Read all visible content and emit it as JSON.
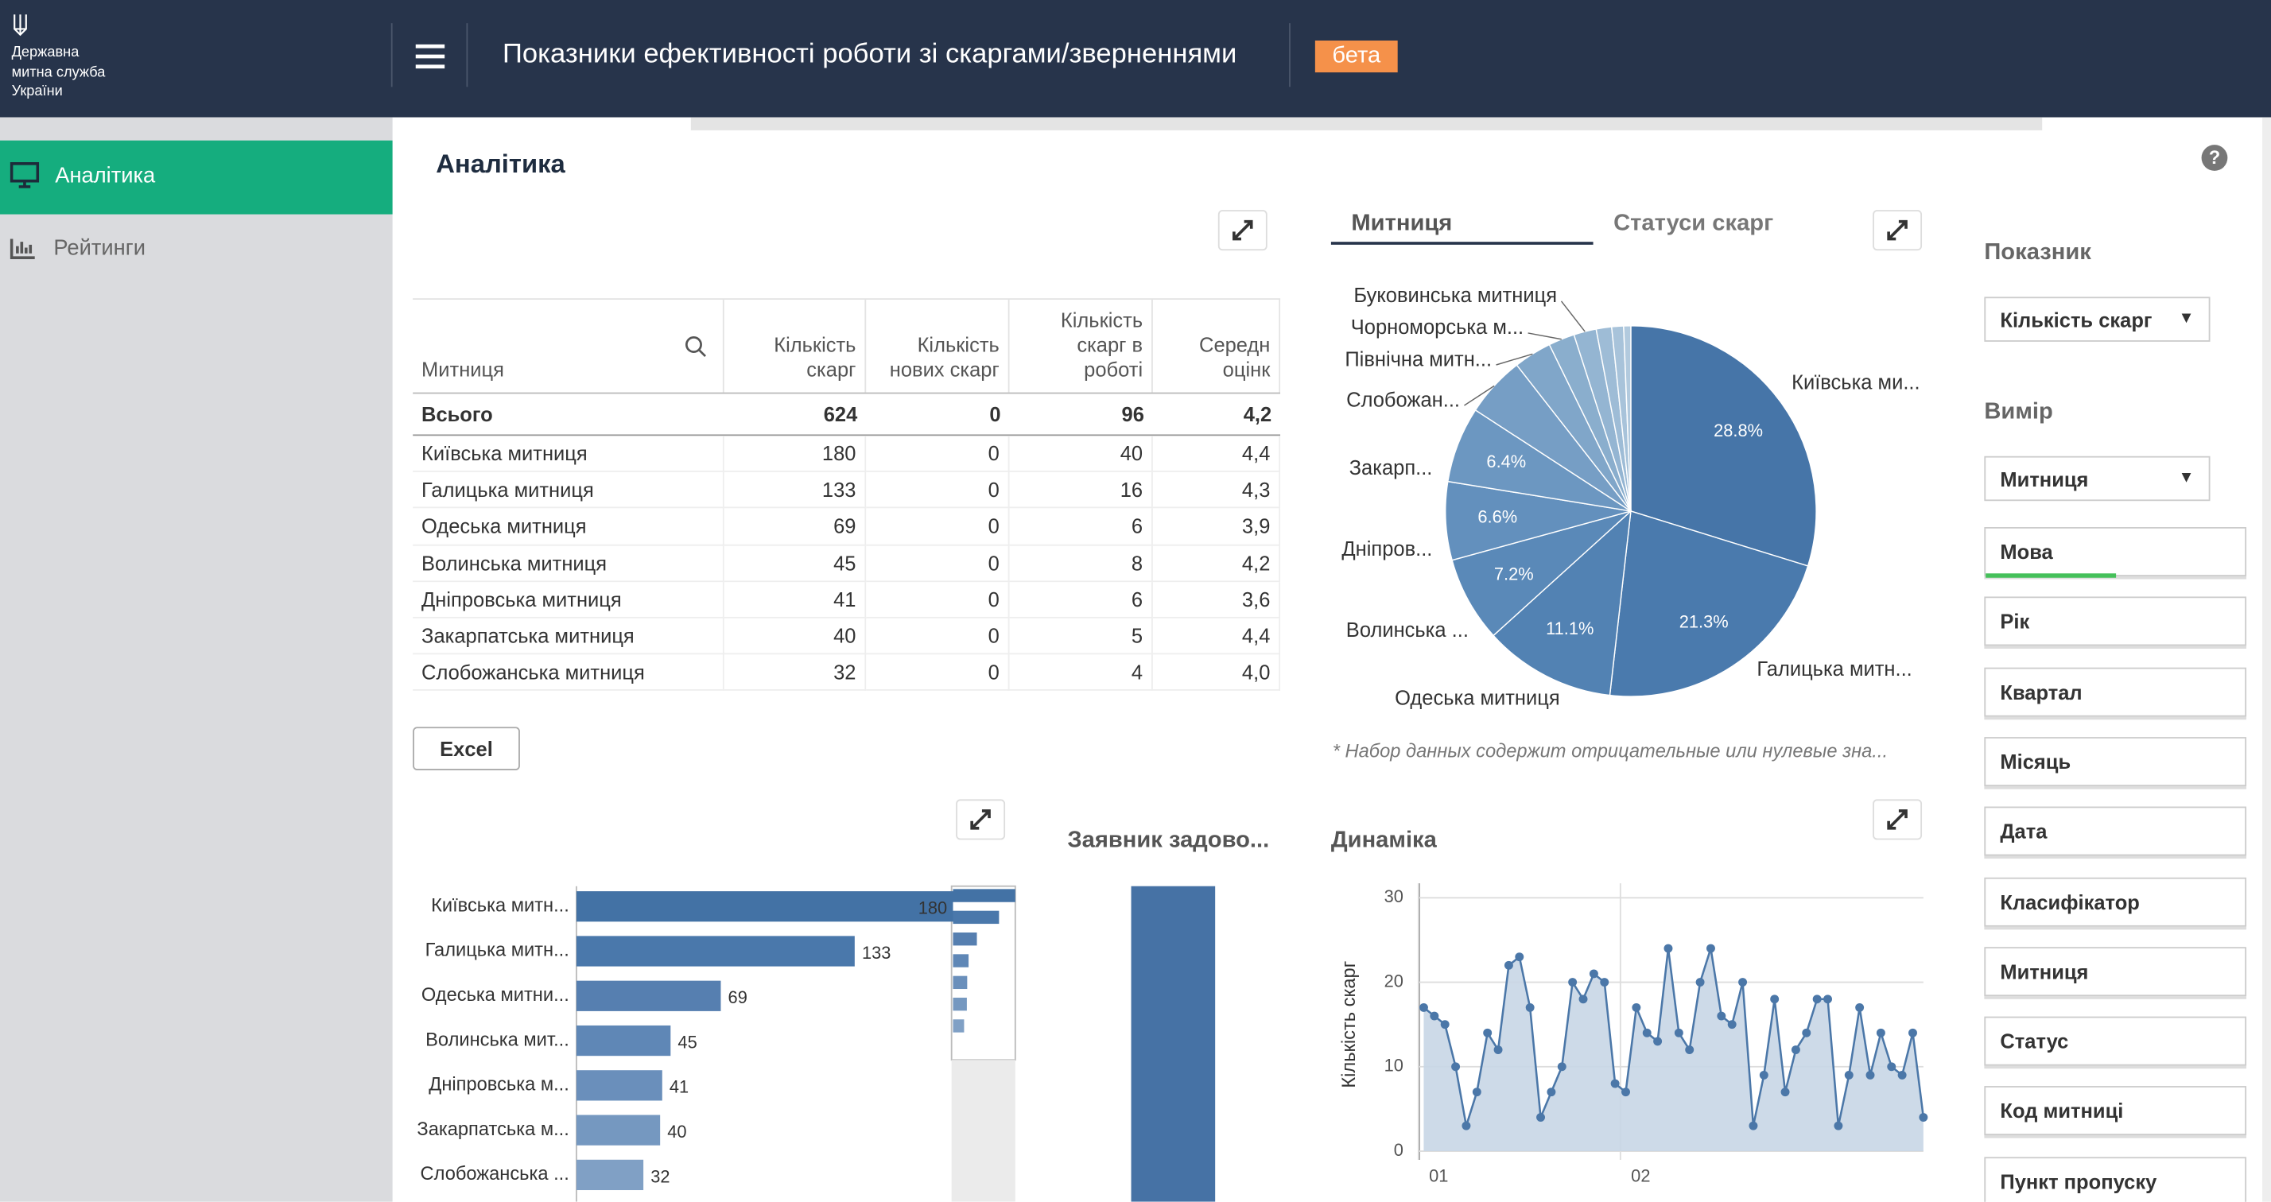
{
  "header": {
    "logo_lines": [
      "Державна",
      "митна служба",
      "України"
    ],
    "title": "Показники ефективності роботи зі скаргами/зверненнями",
    "badge": "бета"
  },
  "sidebar": {
    "items": [
      "Аналітика",
      "Рейтинги"
    ]
  },
  "section_title": "Аналітика",
  "help": "?",
  "table": {
    "columns": [
      "Митниця",
      "Кількість скарг",
      "Кількість нових скарг",
      "Кількість скарг в роботі",
      "Середн оцінк"
    ],
    "total": [
      "Всього",
      624,
      0,
      96,
      "4,2"
    ],
    "rows": [
      [
        "Київська митниця",
        180,
        0,
        40,
        "4,4"
      ],
      [
        "Галицька митниця",
        133,
        0,
        16,
        "4,3"
      ],
      [
        "Одеська митниця",
        69,
        0,
        6,
        "3,9"
      ],
      [
        "Волинська митниця",
        45,
        0,
        8,
        "4,2"
      ],
      [
        "Дніпровська митниця",
        41,
        0,
        6,
        "3,6"
      ],
      [
        "Закарпатська митниця",
        40,
        0,
        5,
        "4,4"
      ],
      [
        "Слобожанська митниця",
        32,
        0,
        4,
        "4,0"
      ]
    ],
    "export": "Excel"
  },
  "satisfaction_title": "Заявник задово...",
  "chart_data": [
    {
      "type": "pie",
      "tabs": [
        "Митниця",
        "Статуси скарг"
      ],
      "categories": [
        "Київська ми...",
        "Галицька митн...",
        "Одеська митниця",
        "Волинська ...",
        "Дніпров...",
        "Закарп...",
        "Слобожан...",
        "Північна митн...",
        "Чорноморська м...",
        "Буковинська митниця",
        null,
        null,
        null
      ],
      "values": [
        28.8,
        21.3,
        11.1,
        7.2,
        6.6,
        6.4,
        5.1,
        3.2,
        2.2,
        1.9,
        1.3,
        1.0,
        0.6
      ],
      "value_labels": [
        "28.8%",
        "21.3%",
        "11.1%",
        "7.2%",
        "6.6%",
        "6.4%",
        null,
        null,
        null,
        null,
        null,
        null,
        null
      ],
      "colors": [
        "#4675a8",
        "#4a7aad",
        "#5282b3",
        "#5a89b8",
        "#6390bd",
        "#6c97c1",
        "#769ec5",
        "#80a6c9",
        "#8aaecd",
        "#94b5d2",
        "#9ebcd6",
        "#a8c3da",
        "#b2cade"
      ],
      "note": "* Набор данных содержит отрицательные или нулевые зна..."
    },
    {
      "type": "bar",
      "orientation": "horizontal",
      "categories": [
        "Київська митн...",
        "Галицька митн...",
        "Одеська митни...",
        "Волинська мит...",
        "Дніпровська м...",
        "Закарпатська м...",
        "Слобожанська ..."
      ],
      "values": [
        180,
        133,
        69,
        45,
        41,
        40,
        32
      ],
      "colors": [
        "#4372a5",
        "#4a78ab",
        "#567fb0",
        "#5f87b6",
        "#6a8fbb",
        "#7598c0",
        "#80a0c5"
      ],
      "xlim": [
        0,
        180
      ]
    },
    {
      "type": "line",
      "title": "Динаміка",
      "y_label": "Кількість скарг",
      "categories": [
        null,
        "01",
        null,
        null,
        null,
        null,
        null,
        null,
        null,
        null,
        null,
        null,
        null,
        null,
        null,
        null,
        null,
        null,
        null,
        null,
        "02",
        null,
        null,
        null,
        null,
        null,
        null,
        null,
        null,
        null,
        null,
        null,
        null,
        null,
        null,
        null,
        null,
        null,
        null,
        null,
        null,
        null,
        null,
        null,
        null,
        null,
        null,
        null
      ],
      "values": [
        17,
        16,
        15,
        10,
        3,
        7,
        14,
        12,
        22,
        23,
        17,
        4,
        7,
        10,
        20,
        18,
        21,
        20,
        8,
        7,
        17,
        14,
        13,
        24,
        14,
        12,
        20,
        24,
        16,
        15,
        20,
        3,
        9,
        18,
        7,
        12,
        14,
        18,
        18,
        3,
        9,
        17,
        9,
        14,
        10,
        9,
        14,
        4
      ],
      "ylim": [
        0,
        30
      ],
      "yticks": [
        0,
        10,
        20,
        30
      ],
      "grid": true,
      "color": "#4b77a8",
      "fill": "#c8d6e5"
    }
  ],
  "controls": {
    "measure_label": "Показник",
    "measure_value": "Кількість скарг",
    "dimension_label": "Вимір",
    "dimension_value": "Митниця",
    "fields": [
      "Мова",
      "Рік",
      "Квартал",
      "Місяць",
      "Дата",
      "Класифікатор",
      "Митниця",
      "Статус",
      "Код митниці",
      "Пункт пропуску"
    ]
  }
}
